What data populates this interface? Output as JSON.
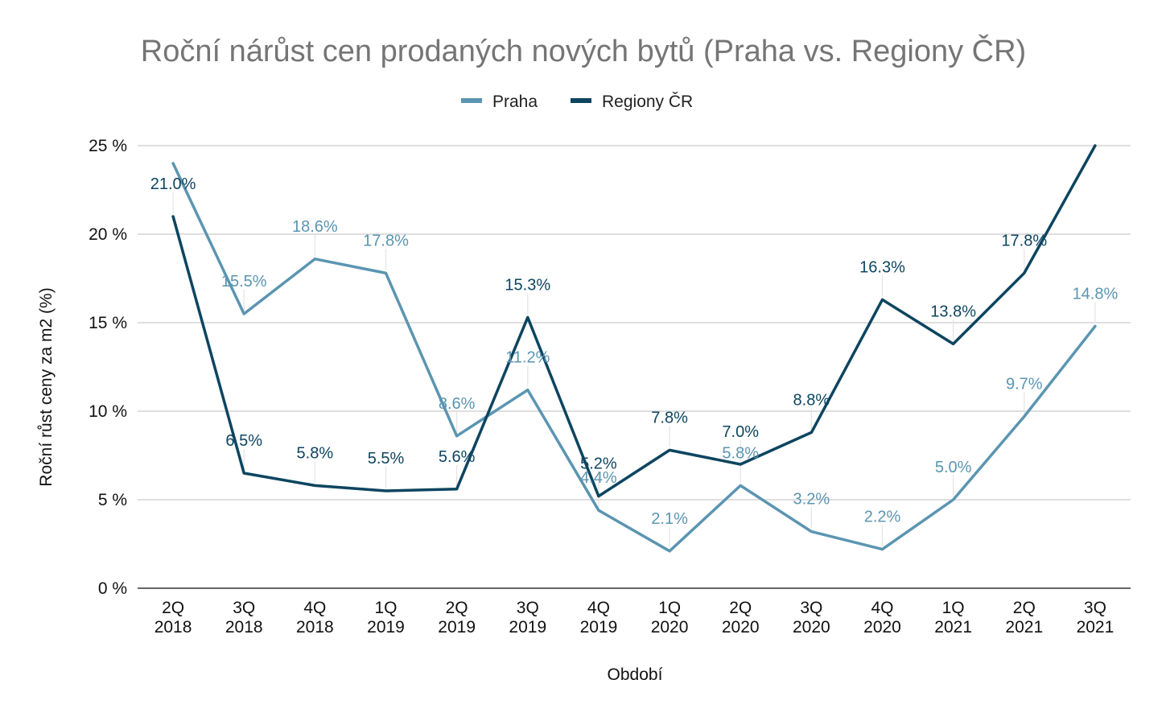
{
  "chart_data": {
    "type": "line",
    "title": "Roční nárůst cen prodaných nových bytů (Praha vs. Regiony ČR)",
    "xlabel": "Období",
    "ylabel": "Roční růst ceny za m2 (%)",
    "ylim": [
      0,
      25
    ],
    "yticks": [
      0,
      5,
      10,
      15,
      20,
      25
    ],
    "ytick_labels": [
      "0 %",
      "5 %",
      "10 %",
      "15 %",
      "20 %",
      "25 %"
    ],
    "grid": true,
    "legend_position": "top-center",
    "categories": [
      {
        "q": "2Q",
        "y": "2018"
      },
      {
        "q": "3Q",
        "y": "2018"
      },
      {
        "q": "4Q",
        "y": "2018"
      },
      {
        "q": "1Q",
        "y": "2019"
      },
      {
        "q": "2Q",
        "y": "2019"
      },
      {
        "q": "3Q",
        "y": "2019"
      },
      {
        "q": "4Q",
        "y": "2019"
      },
      {
        "q": "1Q",
        "y": "2020"
      },
      {
        "q": "2Q",
        "y": "2020"
      },
      {
        "q": "3Q",
        "y": "2020"
      },
      {
        "q": "4Q",
        "y": "2020"
      },
      {
        "q": "1Q",
        "y": "2021"
      },
      {
        "q": "2Q",
        "y": "2021"
      },
      {
        "q": "3Q",
        "y": "2021"
      }
    ],
    "series": [
      {
        "name": "Praha",
        "color": "#5b95b1",
        "values": [
          24.0,
          15.5,
          18.6,
          17.8,
          8.6,
          11.2,
          4.4,
          2.1,
          5.8,
          3.2,
          2.2,
          5.0,
          9.7,
          14.8
        ],
        "labels": [
          "",
          "15.5%",
          "18.6%",
          "17.8%",
          "8.6%",
          "11.2%",
          "4.4%",
          "2.1%",
          "5.8%",
          "3.2%",
          "2.2%",
          "5.0%",
          "9.7%",
          "14.8%"
        ]
      },
      {
        "name": "Regiony ČR",
        "color": "#0d4560",
        "values": [
          21.0,
          6.5,
          5.8,
          5.5,
          5.6,
          15.3,
          5.2,
          7.8,
          7.0,
          8.8,
          16.3,
          13.8,
          17.8,
          25.0
        ],
        "labels": [
          "21.0%",
          "6.5%",
          "5.8%",
          "5.5%",
          "5.6%",
          "15.3%",
          "5.2%",
          "7.8%",
          "7.0%",
          "8.8%",
          "16.3%",
          "13.8%",
          "17.8%",
          ""
        ]
      }
    ]
  }
}
